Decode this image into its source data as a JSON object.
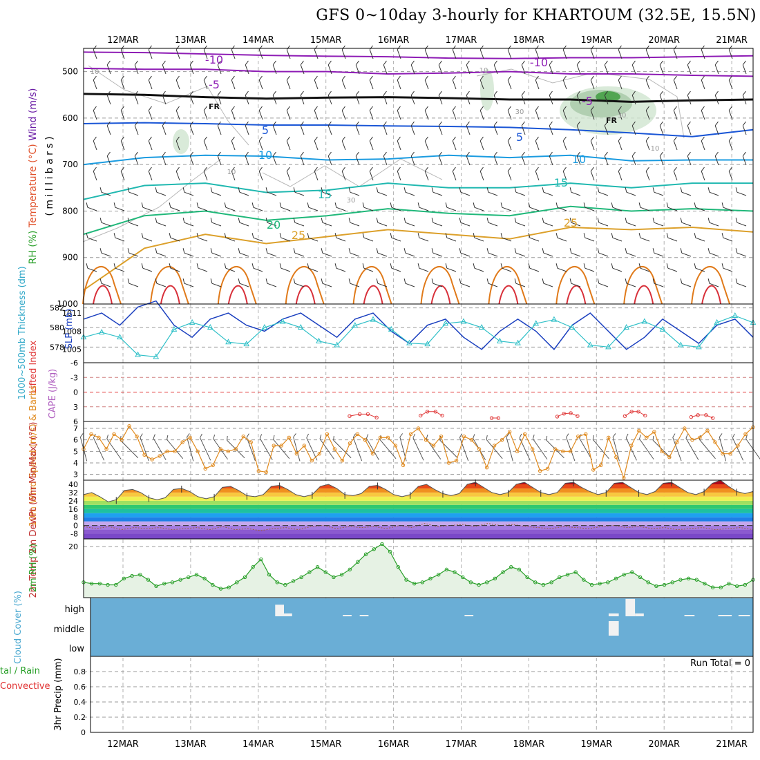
{
  "title": "GFS 0~10day 3-hourly for KHARTOUM (32.5E, 15.5N)",
  "dates": [
    "12MAR",
    "13MAR",
    "14MAR",
    "15MAR",
    "16MAR",
    "17MAR",
    "18MAR",
    "19MAR",
    "20MAR",
    "21MAR"
  ],
  "chart_data": [
    {
      "type": "line",
      "panel": "upper-air",
      "ylabel_parts": [
        "RH (%)",
        "Temperature (°C)",
        "Wind (m/s)",
        "( m i l l i b a r s )"
      ],
      "y_ticks": [
        500,
        600,
        700,
        800,
        900,
        1000
      ],
      "ylim": [
        1000,
        450
      ],
      "temperature_contour_labels": [
        "-10",
        "-5",
        "FR",
        "5",
        "10",
        "15",
        "20",
        "25",
        "-10",
        "-5",
        "FR",
        "5",
        "10",
        "15",
        "25"
      ],
      "rh_contour_labels": [
        "10",
        "10",
        "10",
        "30",
        "30",
        "30",
        "10"
      ],
      "isotherms": [
        {
          "name": "-10",
          "color": "#8e1cb5",
          "pressure": [
            458,
            459,
            462,
            465,
            467,
            468,
            471,
            472,
            470,
            470,
            468,
            466
          ]
        },
        {
          "name": "-5",
          "color": "#8e1cb5",
          "pressure": [
            493,
            495,
            495,
            500,
            500,
            505,
            503,
            500,
            505,
            505,
            508,
            510
          ]
        },
        {
          "name": "FR",
          "color": "#111111",
          "pressure": [
            548,
            550,
            555,
            558,
            556,
            555,
            557,
            560,
            560,
            565,
            562,
            560
          ]
        },
        {
          "name": "5",
          "color": "#1a56d6",
          "pressure": [
            612,
            610,
            612,
            615,
            615,
            617,
            618,
            620,
            625,
            632,
            640,
            625
          ]
        },
        {
          "name": "10",
          "color": "#1a9be0",
          "pressure": [
            700,
            685,
            680,
            682,
            690,
            688,
            680,
            685,
            680,
            692,
            690,
            690
          ]
        },
        {
          "name": "15",
          "color": "#20b8b0",
          "pressure": [
            775,
            745,
            740,
            760,
            755,
            740,
            750,
            750,
            740,
            750,
            740,
            740
          ]
        },
        {
          "name": "20",
          "color": "#20b87a",
          "pressure": [
            850,
            810,
            800,
            820,
            810,
            795,
            805,
            810,
            790,
            800,
            795,
            800
          ]
        },
        {
          "name": "25",
          "color": "#dca02a",
          "pressure": [
            970,
            880,
            850,
            870,
            855,
            840,
            850,
            860,
            835,
            840,
            835,
            845
          ]
        }
      ]
    },
    {
      "type": "line",
      "panel": "thickness-slp",
      "left_ylabel": "1000~500mb Thickness (dm)",
      "right_ylabel": "SLP (mb)",
      "left_ticks": [
        578,
        580,
        582
      ],
      "right_ticks": [
        1005,
        1008,
        1011
      ],
      "series": [
        {
          "name": "SLP (mb)",
          "color": "#1a3fbf",
          "values": [
            1010,
            1011,
            1009,
            1012,
            1013,
            1009,
            1007,
            1010,
            1011,
            1009,
            1008,
            1010,
            1011,
            1009,
            1007,
            1010,
            1011,
            1008,
            1006,
            1009,
            1010,
            1007,
            1005,
            1008,
            1010,
            1008,
            1005,
            1009,
            1011,
            1008,
            1005,
            1007,
            1010,
            1008,
            1006,
            1009,
            1010,
            1007
          ]
        },
        {
          "name": "1000~500mb Thickness (dm)",
          "color": "#30c0c8",
          "values": [
            579,
            579.5,
            579,
            577.2,
            577,
            579.8,
            580.5,
            580,
            578.5,
            578.3,
            580,
            580.6,
            580,
            578.6,
            578.2,
            580.2,
            580.8,
            579.8,
            578.4,
            578.3,
            580.4,
            580.6,
            580,
            578.6,
            578.4,
            580.4,
            580.8,
            580,
            578.2,
            578,
            580,
            580.6,
            579.8,
            578.2,
            578,
            580.5,
            581.2,
            580.5
          ]
        }
      ]
    },
    {
      "type": "line",
      "panel": "cape-li",
      "left_ylabel": "CAPE (J/kg)",
      "right_ylabel": "Lifted Index",
      "y_ticks": [
        -6,
        -3,
        0,
        3,
        6
      ],
      "cape_segments": [
        {
          "x": [
            3.35,
            3.5,
            3.62,
            3.75
          ],
          "values": [
            4.9,
            4.5,
            4.5,
            5.2
          ]
        },
        {
          "x": [
            4.4,
            4.5,
            4.62,
            4.72
          ],
          "values": [
            4.8,
            4.0,
            4.0,
            4.8
          ]
        },
        {
          "x": [
            5.45,
            5.55
          ],
          "values": [
            5.3,
            5.3
          ]
        },
        {
          "x": [
            6.42,
            6.52,
            6.62,
            6.72
          ],
          "values": [
            5.0,
            4.4,
            4.3,
            4.9
          ]
        },
        {
          "x": [
            7.42,
            7.52,
            7.62,
            7.72
          ],
          "values": [
            4.9,
            4.0,
            4.0,
            4.8
          ]
        },
        {
          "x": [
            8.4,
            8.5,
            8.62,
            8.72
          ],
          "values": [
            5.1,
            4.7,
            4.7,
            5.3
          ]
        }
      ]
    },
    {
      "type": "line",
      "panel": "wind10m",
      "ylabel": "10m Wind Speed (m/s) & Barbs",
      "y_ticks": [
        3,
        4,
        5,
        6,
        7
      ],
      "ylim": [
        2.5,
        7.6
      ],
      "series": [
        {
          "name": "10m Wind Speed",
          "color": "#e08a1e",
          "values": [
            5.2,
            6.5,
            6.2,
            5.2,
            6.5,
            6.0,
            7.2,
            6.3,
            4.7,
            4.3,
            4.6,
            5.0,
            5.0,
            5.8,
            6.2,
            5.0,
            3.5,
            3.8,
            5.2,
            5.0,
            5.2,
            6.3,
            5.8,
            3.3,
            3.2,
            5.5,
            5.5,
            6.2,
            4.8,
            5.5,
            4.2,
            4.8,
            6.5,
            5.2,
            4.2,
            5.7,
            6.5,
            6.0,
            4.8,
            6.2,
            6.2,
            5.5,
            3.8,
            6.5,
            7.0,
            6.0,
            5.5,
            6.3,
            4.0,
            4.2,
            6.3,
            6.0,
            5.2,
            3.6,
            5.5,
            6.0,
            6.7,
            5.0,
            6.5,
            5.2,
            3.3,
            3.5,
            5.2,
            5.0,
            5.0,
            6.3,
            6.5,
            3.4,
            3.8,
            6.2,
            4.5,
            2.7,
            5.5,
            6.8,
            6.2,
            6.7,
            5.0,
            4.5,
            5.8,
            7.0,
            6.0,
            6.2,
            6.8,
            5.8,
            4.8,
            4.8,
            5.5,
            6.5,
            7.1
          ]
        }
      ]
    },
    {
      "type": "area",
      "panel": "temp2m",
      "ylabel": "2m Temp 2m DewPt (6hr Min/Max) (°C)",
      "y_ticks": [
        -8,
        0,
        8,
        16,
        24,
        32,
        40
      ],
      "series": [
        {
          "name": "2m Temp",
          "values": [
            30,
            32,
            28,
            23,
            25,
            34,
            35,
            32,
            27,
            25,
            27,
            35,
            36,
            33,
            28,
            26,
            28,
            37,
            38,
            34,
            29,
            28,
            30,
            38,
            39,
            35,
            30,
            28,
            30,
            38,
            40,
            36,
            30,
            29,
            31,
            38,
            39,
            35,
            30,
            28,
            30,
            38,
            40,
            35,
            31,
            29,
            31,
            40,
            42,
            37,
            32,
            30,
            32,
            40,
            42,
            37,
            32,
            30,
            32,
            41,
            42,
            37,
            33,
            30,
            32,
            41,
            42,
            37,
            32,
            30,
            33,
            41,
            42,
            37,
            32,
            30,
            33,
            41,
            44,
            38,
            33,
            31,
            33
          ]
        },
        {
          "name": "2m DewPt",
          "values": [
            -1,
            -3,
            -1,
            -4,
            -2,
            -3,
            -2,
            -4,
            -3,
            -2,
            -4,
            -1,
            -4,
            -3,
            -5,
            -3,
            -2,
            -4,
            -1,
            0,
            -3,
            -1,
            -2,
            -1,
            -3,
            0,
            -2,
            2,
            -1,
            0,
            1,
            -1,
            2,
            0,
            1,
            -1,
            -2,
            -3,
            -1,
            -2,
            -3,
            -1,
            0,
            -2,
            -1,
            -3,
            -2,
            -4,
            -3,
            -2,
            -4,
            -3,
            -2,
            -4
          ]
        }
      ]
    },
    {
      "type": "area",
      "panel": "rh2m",
      "ylabel": "2m RH (%)",
      "y_ticks": [
        20
      ],
      "series": [
        {
          "name": "2m RH",
          "color": "#2aa02a",
          "values": [
            6,
            5.5,
            5.5,
            5,
            5,
            7.5,
            8.5,
            9,
            7,
            4.5,
            5.5,
            6,
            7,
            8,
            9,
            7.5,
            5,
            3.5,
            4,
            6,
            8,
            12,
            15,
            9,
            6,
            5,
            6.5,
            8,
            10,
            12,
            10,
            8,
            9,
            11,
            14,
            17,
            19,
            21,
            18,
            12,
            7,
            5.5,
            6,
            7.5,
            9,
            11,
            10,
            8,
            6,
            5,
            6,
            7.5,
            10,
            12,
            11,
            8,
            6,
            5,
            6,
            8,
            9,
            10,
            7,
            5,
            5.5,
            6,
            7.5,
            9,
            10,
            8,
            6,
            4.5,
            5,
            6,
            7,
            7.5,
            7,
            5.5,
            4,
            4,
            5.5,
            4.5,
            5,
            7
          ]
        }
      ]
    },
    {
      "type": "bar",
      "panel": "cloud",
      "ylabel": "Cloud Cover (%)",
      "categories": [
        "high",
        "middle",
        "low"
      ],
      "high_segments": [
        {
          "x": [
            2.25,
            2.38
          ],
          "cover": 0.6
        },
        {
          "x": [
            2.38,
            2.5
          ],
          "cover": 0.15
        },
        {
          "x": [
            3.25,
            3.38
          ],
          "cover": 0.05
        },
        {
          "x": [
            3.5,
            3.63
          ],
          "cover": 0.05
        },
        {
          "x": [
            5.05,
            5.18
          ],
          "cover": 0.05
        },
        {
          "x": [
            7.18,
            7.33
          ],
          "cover": 0.15
        },
        {
          "x": [
            7.43,
            7.57
          ],
          "cover": 0.9
        },
        {
          "x": [
            7.57,
            7.7
          ],
          "cover": 0.15
        },
        {
          "x": [
            8.3,
            8.45
          ],
          "cover": 0.05
        },
        {
          "x": [
            8.8,
            9.0
          ],
          "cover": 0.05
        },
        {
          "x": [
            9.1,
            9.27
          ],
          "cover": 0.05
        }
      ],
      "middle_segments": [
        {
          "x": [
            7.18,
            7.33
          ],
          "cover": 0.75
        }
      ]
    },
    {
      "type": "bar",
      "panel": "precip",
      "ylabel": "3hr Precip (mm)",
      "side_label_1": "tal / Rain",
      "side_label_2": "Convective",
      "y_ticks": [
        0,
        0.2,
        0.4,
        0.6,
        0.8
      ],
      "ylim": [
        0,
        1
      ],
      "run_total": "Run Total = 0",
      "values": []
    }
  ]
}
